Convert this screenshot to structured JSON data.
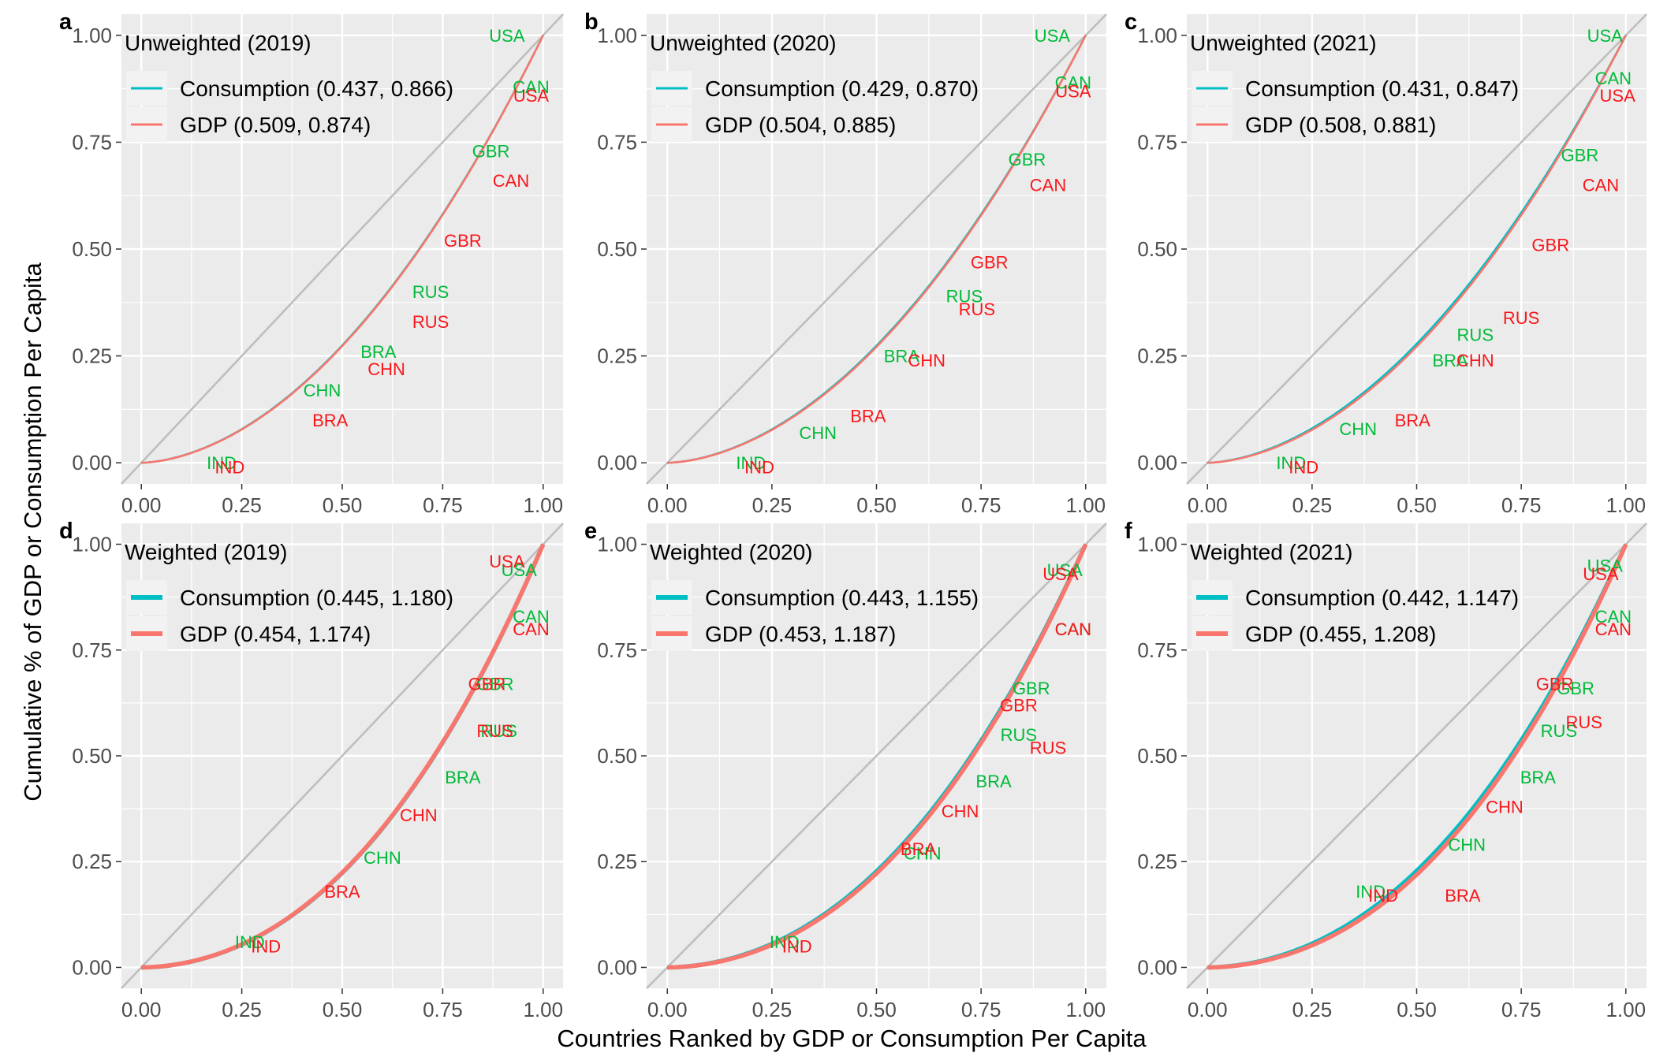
{
  "figure": {
    "ylabel": "Cumulative % of GDP or Consumption Per Capita",
    "xlabel": "Countries Ranked by GDP or Consumption Per Capita",
    "colors": {
      "consumption": "#00BFC4",
      "gdp": "#F8766D",
      "consumption_label": "#00BA38",
      "gdp_label": "#F8171B",
      "diagonal": "#BEBEBE",
      "panel_bg": "#EBEBEB",
      "grid": "#FFFFFF"
    },
    "xticks": [
      "0.00",
      "0.25",
      "0.50",
      "0.75",
      "1.00"
    ],
    "yticks": [
      "0.00",
      "0.25",
      "0.50",
      "0.75",
      "1.00"
    ]
  },
  "chart_data": [
    {
      "type": "line",
      "panel": "a",
      "legend_title": "Unweighted (2019)",
      "xlim": [
        0,
        1
      ],
      "ylim": [
        0,
        1
      ],
      "series": [
        {
          "name": "Consumption (0.437, 0.866)",
          "key": "consumption",
          "curve": 0.866,
          "points_x": [
            0,
            0.05,
            0.1,
            0.15,
            0.2,
            0.25,
            0.3,
            0.35,
            0.4,
            0.45,
            0.5,
            0.55,
            0.6,
            0.65,
            0.7,
            0.75,
            0.8,
            0.85,
            0.9,
            0.95,
            1.0
          ]
        },
        {
          "name": "GDP (0.509, 0.874)",
          "key": "gdp",
          "curve": 0.874
        }
      ],
      "labels": [
        {
          "text": "USA",
          "series": "consumption",
          "x": 0.91,
          "y": 1.0
        },
        {
          "text": "CAN",
          "series": "consumption",
          "x": 0.97,
          "y": 0.88
        },
        {
          "text": "GBR",
          "series": "consumption",
          "x": 0.87,
          "y": 0.73
        },
        {
          "text": "RUS",
          "series": "consumption",
          "x": 0.72,
          "y": 0.4
        },
        {
          "text": "BRA",
          "series": "consumption",
          "x": 0.59,
          "y": 0.26
        },
        {
          "text": "CHN",
          "series": "consumption",
          "x": 0.45,
          "y": 0.17
        },
        {
          "text": "IND",
          "series": "consumption",
          "x": 0.2,
          "y": 0.0
        },
        {
          "text": "USA",
          "series": "gdp",
          "x": 0.97,
          "y": 0.86
        },
        {
          "text": "CAN",
          "series": "gdp",
          "x": 0.92,
          "y": 0.66
        },
        {
          "text": "GBR",
          "series": "gdp",
          "x": 0.8,
          "y": 0.52
        },
        {
          "text": "RUS",
          "series": "gdp",
          "x": 0.72,
          "y": 0.33
        },
        {
          "text": "CHN",
          "series": "gdp",
          "x": 0.61,
          "y": 0.22
        },
        {
          "text": "BRA",
          "series": "gdp",
          "x": 0.47,
          "y": 0.1
        },
        {
          "text": "IND",
          "series": "gdp",
          "x": 0.22,
          "y": -0.01
        }
      ]
    },
    {
      "type": "line",
      "panel": "b",
      "legend_title": "Unweighted (2020)",
      "xlim": [
        0,
        1
      ],
      "ylim": [
        0,
        1
      ],
      "series": [
        {
          "name": "Consumption (0.429, 0.870)",
          "key": "consumption",
          "curve": 0.87
        },
        {
          "name": "GDP (0.504, 0.885)",
          "key": "gdp",
          "curve": 0.885
        }
      ],
      "labels": [
        {
          "text": "USA",
          "series": "consumption",
          "x": 0.92,
          "y": 1.0
        },
        {
          "text": "CAN",
          "series": "consumption",
          "x": 0.97,
          "y": 0.89
        },
        {
          "text": "GBR",
          "series": "consumption",
          "x": 0.86,
          "y": 0.71
        },
        {
          "text": "RUS",
          "series": "consumption",
          "x": 0.71,
          "y": 0.39
        },
        {
          "text": "BRA",
          "series": "consumption",
          "x": 0.56,
          "y": 0.25
        },
        {
          "text": "CHN",
          "series": "consumption",
          "x": 0.36,
          "y": 0.07
        },
        {
          "text": "IND",
          "series": "consumption",
          "x": 0.2,
          "y": 0.0
        },
        {
          "text": "USA",
          "series": "gdp",
          "x": 0.97,
          "y": 0.87
        },
        {
          "text": "CAN",
          "series": "gdp",
          "x": 0.91,
          "y": 0.65
        },
        {
          "text": "GBR",
          "series": "gdp",
          "x": 0.77,
          "y": 0.47
        },
        {
          "text": "RUS",
          "series": "gdp",
          "x": 0.74,
          "y": 0.36
        },
        {
          "text": "CHN",
          "series": "gdp",
          "x": 0.62,
          "y": 0.24
        },
        {
          "text": "BRA",
          "series": "gdp",
          "x": 0.48,
          "y": 0.11
        },
        {
          "text": "IND",
          "series": "gdp",
          "x": 0.22,
          "y": -0.01
        }
      ]
    },
    {
      "type": "line",
      "panel": "c",
      "legend_title": "Unweighted (2021)",
      "xlim": [
        0,
        1
      ],
      "ylim": [
        0,
        1
      ],
      "series": [
        {
          "name": "Consumption (0.431, 0.847)",
          "key": "consumption",
          "curve": 0.847
        },
        {
          "name": "GDP (0.508, 0.881)",
          "key": "gdp",
          "curve": 0.881
        }
      ],
      "labels": [
        {
          "text": "USA",
          "series": "consumption",
          "x": 0.95,
          "y": 1.0
        },
        {
          "text": "CAN",
          "series": "consumption",
          "x": 0.97,
          "y": 0.9
        },
        {
          "text": "GBR",
          "series": "consumption",
          "x": 0.89,
          "y": 0.72
        },
        {
          "text": "RUS",
          "series": "consumption",
          "x": 0.64,
          "y": 0.3
        },
        {
          "text": "BRA",
          "series": "consumption",
          "x": 0.58,
          "y": 0.24
        },
        {
          "text": "CHN",
          "series": "consumption",
          "x": 0.36,
          "y": 0.08
        },
        {
          "text": "IND",
          "series": "consumption",
          "x": 0.2,
          "y": 0.0
        },
        {
          "text": "USA",
          "series": "gdp",
          "x": 0.98,
          "y": 0.86
        },
        {
          "text": "CAN",
          "series": "gdp",
          "x": 0.94,
          "y": 0.65
        },
        {
          "text": "GBR",
          "series": "gdp",
          "x": 0.82,
          "y": 0.51
        },
        {
          "text": "RUS",
          "series": "gdp",
          "x": 0.75,
          "y": 0.34
        },
        {
          "text": "CHN",
          "series": "gdp",
          "x": 0.64,
          "y": 0.24
        },
        {
          "text": "BRA",
          "series": "gdp",
          "x": 0.49,
          "y": 0.1
        },
        {
          "text": "IND",
          "series": "gdp",
          "x": 0.23,
          "y": -0.01
        }
      ]
    },
    {
      "type": "line",
      "panel": "d",
      "legend_title": "Weighted (2019)",
      "xlim": [
        0,
        1
      ],
      "ylim": [
        0,
        1
      ],
      "series": [
        {
          "name": "Consumption (0.445, 1.180)",
          "key": "consumption",
          "curve": 1.18
        },
        {
          "name": "GDP (0.454, 1.174)",
          "key": "gdp",
          "curve": 1.174
        }
      ],
      "labels": [
        {
          "text": "USA",
          "series": "consumption",
          "x": 0.94,
          "y": 0.94
        },
        {
          "text": "CAN",
          "series": "consumption",
          "x": 0.97,
          "y": 0.83
        },
        {
          "text": "GBR",
          "series": "consumption",
          "x": 0.88,
          "y": 0.67
        },
        {
          "text": "RUS",
          "series": "consumption",
          "x": 0.89,
          "y": 0.56
        },
        {
          "text": "BRA",
          "series": "consumption",
          "x": 0.8,
          "y": 0.45
        },
        {
          "text": "CHN",
          "series": "consumption",
          "x": 0.6,
          "y": 0.26
        },
        {
          "text": "IND",
          "series": "consumption",
          "x": 0.27,
          "y": 0.06
        },
        {
          "text": "USA",
          "series": "gdp",
          "x": 0.91,
          "y": 0.96
        },
        {
          "text": "CAN",
          "series": "gdp",
          "x": 0.97,
          "y": 0.8
        },
        {
          "text": "GBR",
          "series": "gdp",
          "x": 0.86,
          "y": 0.67
        },
        {
          "text": "RUS",
          "series": "gdp",
          "x": 0.88,
          "y": 0.56
        },
        {
          "text": "CHN",
          "series": "gdp",
          "x": 0.69,
          "y": 0.36
        },
        {
          "text": "BRA",
          "series": "gdp",
          "x": 0.5,
          "y": 0.18
        },
        {
          "text": "IND",
          "series": "gdp",
          "x": 0.31,
          "y": 0.05
        }
      ]
    },
    {
      "type": "line",
      "panel": "e",
      "legend_title": "Weighted (2020)",
      "xlim": [
        0,
        1
      ],
      "ylim": [
        0,
        1
      ],
      "series": [
        {
          "name": "Consumption (0.443, 1.155)",
          "key": "consumption",
          "curve": 1.155
        },
        {
          "name": "GDP (0.453, 1.187)",
          "key": "gdp",
          "curve": 1.187
        }
      ],
      "labels": [
        {
          "text": "USA",
          "series": "consumption",
          "x": 0.95,
          "y": 0.94
        },
        {
          "text": "CAN",
          "series": "consumption",
          "x": 0.97,
          "y": 0.8
        },
        {
          "text": "GBR",
          "series": "consumption",
          "x": 0.87,
          "y": 0.66
        },
        {
          "text": "RUS",
          "series": "consumption",
          "x": 0.84,
          "y": 0.55
        },
        {
          "text": "BRA",
          "series": "consumption",
          "x": 0.78,
          "y": 0.44
        },
        {
          "text": "CHN",
          "series": "consumption",
          "x": 0.61,
          "y": 0.27
        },
        {
          "text": "IND",
          "series": "consumption",
          "x": 0.28,
          "y": 0.06
        },
        {
          "text": "USA",
          "series": "gdp",
          "x": 0.94,
          "y": 0.93
        },
        {
          "text": "CAN",
          "series": "gdp",
          "x": 0.97,
          "y": 0.8
        },
        {
          "text": "GBR",
          "series": "gdp",
          "x": 0.84,
          "y": 0.62
        },
        {
          "text": "RUS",
          "series": "gdp",
          "x": 0.91,
          "y": 0.52
        },
        {
          "text": "CHN",
          "series": "gdp",
          "x": 0.7,
          "y": 0.37
        },
        {
          "text": "BRA",
          "series": "gdp",
          "x": 0.6,
          "y": 0.28
        },
        {
          "text": "IND",
          "series": "gdp",
          "x": 0.31,
          "y": 0.05
        }
      ]
    },
    {
      "type": "line",
      "panel": "f",
      "legend_title": "Weighted (2021)",
      "xlim": [
        0,
        1
      ],
      "ylim": [
        0,
        1
      ],
      "series": [
        {
          "name": "Consumption (0.442, 1.147)",
          "key": "consumption",
          "curve": 1.147
        },
        {
          "name": "GDP (0.455, 1.208)",
          "key": "gdp",
          "curve": 1.208
        }
      ],
      "labels": [
        {
          "text": "USA",
          "series": "consumption",
          "x": 0.95,
          "y": 0.95
        },
        {
          "text": "CAN",
          "series": "consumption",
          "x": 0.97,
          "y": 0.83
        },
        {
          "text": "GBR",
          "series": "consumption",
          "x": 0.88,
          "y": 0.66
        },
        {
          "text": "RUS",
          "series": "consumption",
          "x": 0.84,
          "y": 0.56
        },
        {
          "text": "BRA",
          "series": "consumption",
          "x": 0.79,
          "y": 0.45
        },
        {
          "text": "CHN",
          "series": "consumption",
          "x": 0.62,
          "y": 0.29
        },
        {
          "text": "IND",
          "series": "consumption",
          "x": 0.39,
          "y": 0.18
        },
        {
          "text": "USA",
          "series": "gdp",
          "x": 0.94,
          "y": 0.93
        },
        {
          "text": "CAN",
          "series": "gdp",
          "x": 0.97,
          "y": 0.8
        },
        {
          "text": "GBR",
          "series": "gdp",
          "x": 0.83,
          "y": 0.67
        },
        {
          "text": "RUS",
          "series": "gdp",
          "x": 0.9,
          "y": 0.58
        },
        {
          "text": "CHN",
          "series": "gdp",
          "x": 0.71,
          "y": 0.38
        },
        {
          "text": "BRA",
          "series": "gdp",
          "x": 0.61,
          "y": 0.17
        },
        {
          "text": "IND",
          "series": "gdp",
          "x": 0.42,
          "y": 0.17
        }
      ]
    }
  ]
}
